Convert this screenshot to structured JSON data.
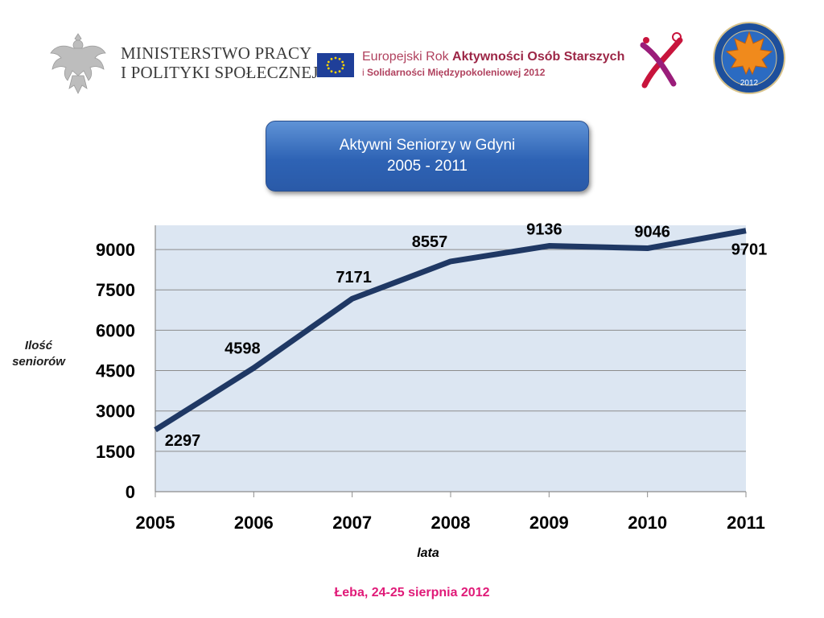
{
  "header": {
    "ministry_lines": [
      "MINISTERSTWO PRACY",
      "I POLITYKI SPOŁECZNEJ"
    ],
    "eyear_line1_prefix": "Europejski Rok ",
    "eyear_line1_bold": "Aktywności Osób Starszych",
    "eyear_line2_prefix": "i ",
    "eyear_line2_bold": "Solidarności Międzypokoleniowej 2012",
    "seal_year": "2012"
  },
  "title": {
    "line1": "Aktywni Seniorzy w Gdyni",
    "line2": "2005 - 2011"
  },
  "footer": "Łeba, 24-25 sierpnia 2012",
  "colors": {
    "plot_background": "#dce6f2",
    "line": "#1f3864",
    "grid": "#8c8c8c",
    "title_box": "#2e63b5",
    "footer_text": "#e01a78"
  },
  "chart_data": {
    "type": "line",
    "x": [
      "2005",
      "2006",
      "2007",
      "2008",
      "2009",
      "2010",
      "2011"
    ],
    "series": [
      {
        "values": [
          2297,
          4598,
          7171,
          8557,
          9136,
          9046,
          9701
        ],
        "labels": [
          "2297",
          "4598",
          "7171",
          "8557",
          "9136",
          "9046",
          "9701"
        ]
      }
    ],
    "xlabel": "lata",
    "ylabel": "Ilość seniorów",
    "ylabel_lines": [
      "Ilość",
      "seniorów"
    ],
    "ylim": [
      0,
      9900
    ],
    "yticks": [
      0,
      1500,
      3000,
      4500,
      6000,
      7500,
      9000
    ],
    "ytick_labels": [
      "0",
      "1500",
      "3000",
      "4500",
      "6000",
      "7500",
      "9000"
    ],
    "grid": true,
    "legend": "none"
  }
}
